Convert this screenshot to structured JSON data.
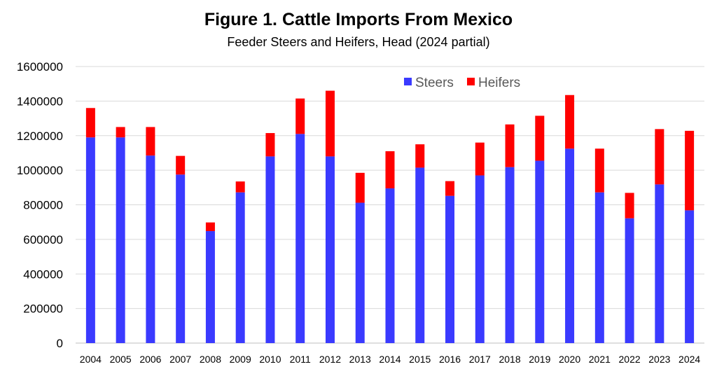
{
  "chart_data": {
    "type": "bar",
    "stacked": true,
    "title": "Figure 1. Cattle Imports From Mexico",
    "subtitle": "Feeder Steers and Heifers, Head (2024 partial)",
    "xlabel": "",
    "ylabel": "",
    "ylim": [
      0,
      1600000
    ],
    "yticks": [
      0,
      200000,
      400000,
      600000,
      800000,
      1000000,
      1200000,
      1400000,
      1600000
    ],
    "ytick_labels": [
      "0",
      "200000",
      "400000",
      "600000",
      "800000",
      "1000000",
      "1200000",
      "1400000",
      "1600000"
    ],
    "grid": true,
    "legend_position": "top-right",
    "categories": [
      "2004",
      "2005",
      "2006",
      "2007",
      "2008",
      "2009",
      "2010",
      "2011",
      "2012",
      "2013",
      "2014",
      "2015",
      "2016",
      "2017",
      "2018",
      "2019",
      "2020",
      "2021",
      "2022",
      "2023",
      "2024"
    ],
    "series": [
      {
        "name": "Steers",
        "color": "#3a3aff",
        "values": [
          1190000,
          1190000,
          1085000,
          975000,
          648000,
          872000,
          1080000,
          1210000,
          1080000,
          812000,
          895000,
          1015000,
          852000,
          970000,
          1018000,
          1055000,
          1125000,
          872000,
          722000,
          918000,
          768000
        ]
      },
      {
        "name": "Heifers",
        "color": "#ff0000",
        "values": [
          170000,
          60000,
          165000,
          108000,
          50000,
          63000,
          135000,
          205000,
          380000,
          173000,
          215000,
          135000,
          85000,
          190000,
          247000,
          260000,
          310000,
          253000,
          147000,
          320000,
          460000
        ]
      }
    ]
  }
}
